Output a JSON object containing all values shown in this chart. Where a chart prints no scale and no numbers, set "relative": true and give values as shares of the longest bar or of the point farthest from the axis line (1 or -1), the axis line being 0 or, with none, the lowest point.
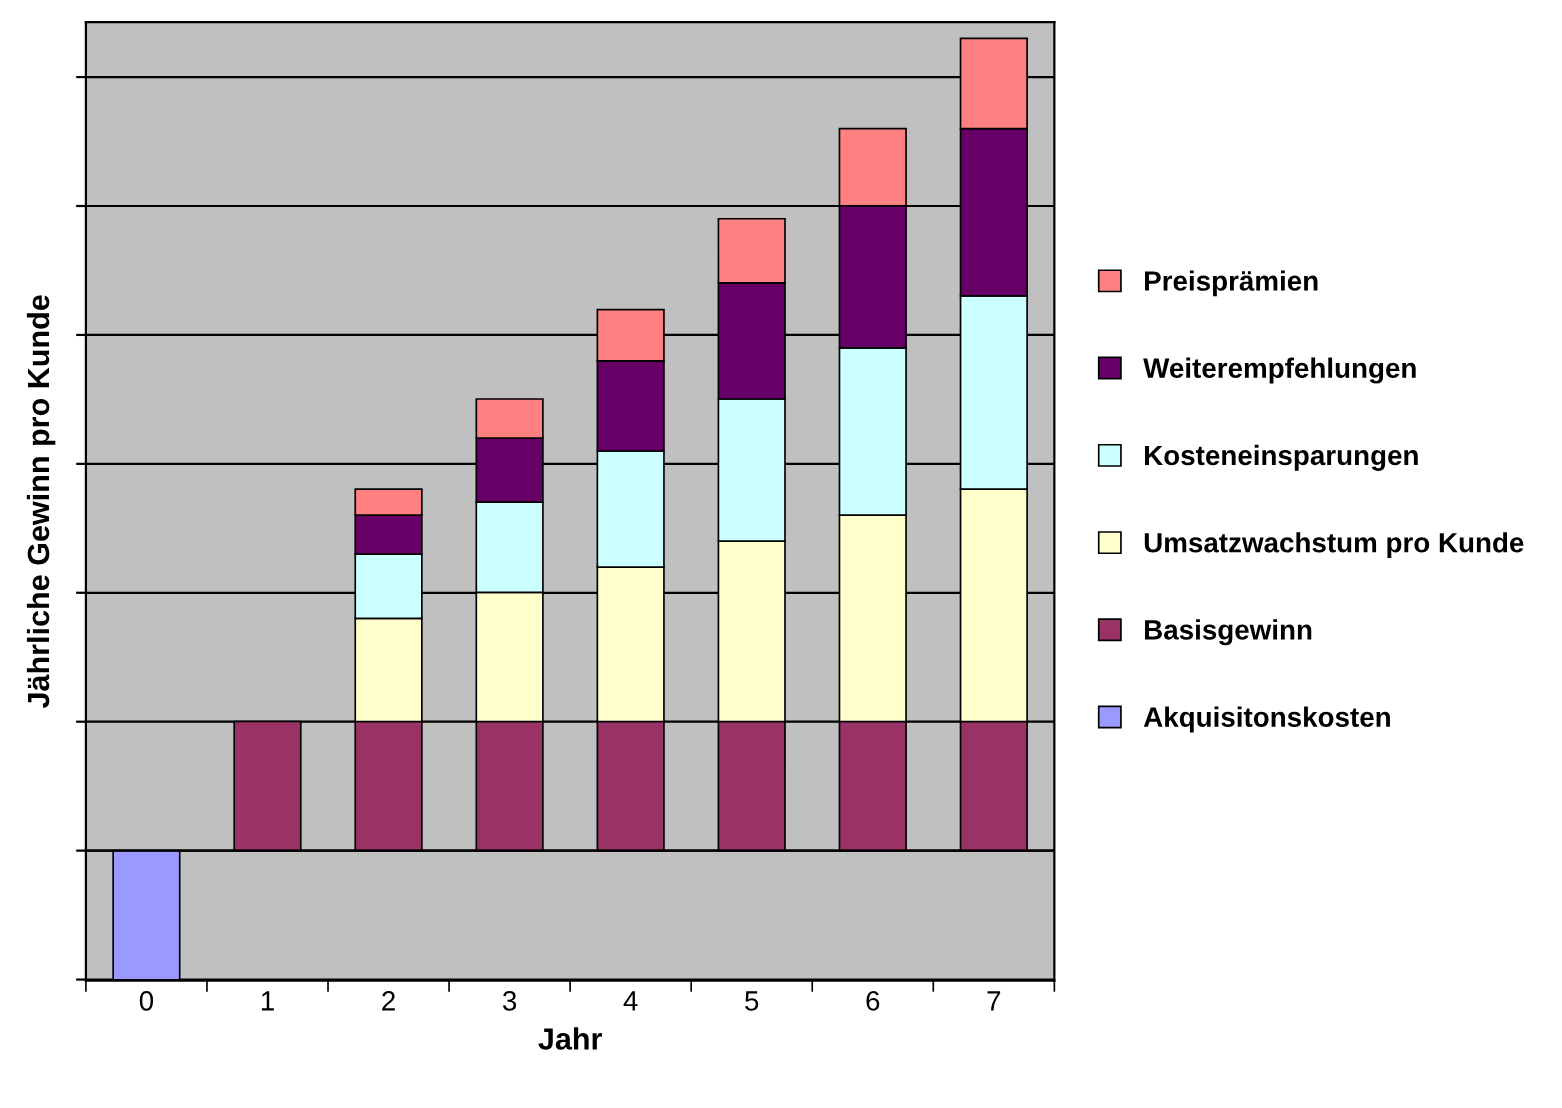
{
  "chart_data": {
    "type": "bar",
    "stacked": true,
    "relative": true,
    "xlabel": "Jahr",
    "ylabel": "Jährliche Gewinn pro Kunde",
    "categories": [
      "0",
      "1",
      "2",
      "3",
      "4",
      "5",
      "6",
      "7"
    ],
    "series": [
      {
        "name": "Akquisitonskosten",
        "color": "#9999ff",
        "values": [
          -0.159,
          null,
          null,
          null,
          null,
          null,
          null,
          null
        ]
      },
      {
        "name": "Basisgewinn",
        "color": "#993366",
        "values": [
          null,
          0.159,
          0.159,
          0.159,
          0.159,
          0.159,
          0.159,
          0.159
        ]
      },
      {
        "name": "Umsatzwachstum pro Kunde",
        "color": "#ffffcc",
        "values": [
          null,
          null,
          0.127,
          0.159,
          0.19,
          0.222,
          0.254,
          0.286
        ]
      },
      {
        "name": "Kosteneinsparungen",
        "color": "#ccffff",
        "values": [
          null,
          null,
          0.079,
          0.111,
          0.143,
          0.175,
          0.206,
          0.238
        ]
      },
      {
        "name": "Weiterempfehlungen",
        "color": "#660066",
        "values": [
          null,
          null,
          0.048,
          0.079,
          0.111,
          0.143,
          0.175,
          0.206
        ]
      },
      {
        "name": "Preisprämien",
        "color": "#ff8080",
        "values": [
          null,
          null,
          0.032,
          0.048,
          0.063,
          0.079,
          0.095,
          0.111
        ]
      }
    ],
    "grid": "y",
    "legend": "right"
  }
}
